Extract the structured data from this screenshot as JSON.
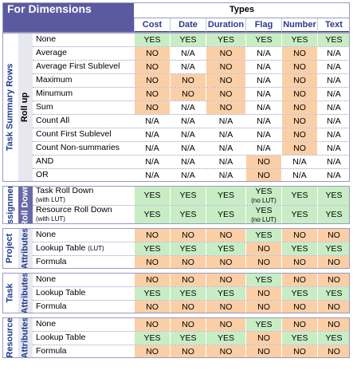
{
  "title": "For Dimensions",
  "types_header": "Types",
  "columns": [
    "Cost",
    "Date",
    "Duration",
    "Flag",
    "Number",
    "Text"
  ],
  "sections": [
    {
      "label": "Task Summary Rows",
      "sublabel": "Roll up",
      "sub_style": "rollup",
      "rows": [
        {
          "label": "None",
          "values": [
            "YES",
            "YES",
            "YES",
            "YES",
            "YES",
            "YES"
          ]
        },
        {
          "label": "Average",
          "values": [
            "NO",
            "N/A",
            "NO",
            "N/A",
            "NO",
            "N/A"
          ]
        },
        {
          "label": "Average First Sublevel",
          "values": [
            "NO",
            "N/A",
            "NO",
            "N/A",
            "NO",
            "N/A"
          ]
        },
        {
          "label": "Maximum",
          "values": [
            "NO",
            "NO",
            "NO",
            "N/A",
            "NO",
            "N/A"
          ]
        },
        {
          "label": "Minumum",
          "values": [
            "NO",
            "NO",
            "NO",
            "N/A",
            "NO",
            "N/A"
          ]
        },
        {
          "label": "Sum",
          "values": [
            "NO",
            "N/A",
            "NO",
            "N/A",
            "NO",
            "N/A"
          ]
        },
        {
          "label": "Count All",
          "values": [
            "N/A",
            "N/A",
            "N/A",
            "N/A",
            "NO",
            "N/A"
          ]
        },
        {
          "label": "Count First Sublevel",
          "values": [
            "N/A",
            "N/A",
            "N/A",
            "N/A",
            "NO",
            "N/A"
          ]
        },
        {
          "label": "Count Non-summaries",
          "values": [
            "N/A",
            "N/A",
            "N/A",
            "N/A",
            "NO",
            "N/A"
          ]
        },
        {
          "label": "AND",
          "values": [
            "N/A",
            "N/A",
            "N/A",
            "NO",
            "N/A",
            "N/A"
          ]
        },
        {
          "label": "OR",
          "values": [
            "N/A",
            "N/A",
            "N/A",
            "NO",
            "N/A",
            "N/A"
          ]
        }
      ]
    },
    {
      "label": "Assignment",
      "sublabel": "Roll Down",
      "sub_style": "rolldown",
      "rows": [
        {
          "label": "Task Roll Down",
          "note": "(with LUT)",
          "values": [
            "YES",
            "YES",
            "YES",
            "YES",
            "YES",
            "YES"
          ],
          "flag_note": "(no LUT)"
        },
        {
          "label": "Resource Roll Down",
          "note": "(with LUT)",
          "values": [
            "YES",
            "YES",
            "YES",
            "YES",
            "YES",
            "YES"
          ],
          "flag_note": "(no LUT)"
        }
      ]
    },
    {
      "label": "Project",
      "sublabel": "Attributes",
      "sub_style": "attr",
      "rows": [
        {
          "label": "None",
          "values": [
            "NO",
            "NO",
            "NO",
            "YES",
            "NO",
            "NO"
          ]
        },
        {
          "label": "Lookup Table",
          "inline_note": "(LUT)",
          "values": [
            "YES",
            "YES",
            "YES",
            "NO",
            "YES",
            "YES"
          ]
        },
        {
          "label": "Formula",
          "values": [
            "NO",
            "NO",
            "NO",
            "NO",
            "NO",
            "NO"
          ]
        }
      ]
    },
    {
      "label": "Task",
      "sublabel": "Attributes",
      "sub_style": "attr",
      "rows": [
        {
          "label": "None",
          "values": [
            "NO",
            "NO",
            "NO",
            "YES",
            "NO",
            "NO"
          ]
        },
        {
          "label": "Lookup Table",
          "values": [
            "YES",
            "YES",
            "YES",
            "NO",
            "YES",
            "YES"
          ]
        },
        {
          "label": "Formula",
          "values": [
            "NO",
            "NO",
            "NO",
            "NO",
            "NO",
            "NO"
          ]
        }
      ]
    },
    {
      "label": "Resource",
      "sublabel": "Attributes",
      "sub_style": "attr",
      "rows": [
        {
          "label": "None",
          "values": [
            "NO",
            "NO",
            "NO",
            "YES",
            "NO",
            "NO"
          ]
        },
        {
          "label": "Lookup Table",
          "values": [
            "YES",
            "YES",
            "YES",
            "NO",
            "YES",
            "YES"
          ]
        },
        {
          "label": "Formula",
          "values": [
            "NO",
            "NO",
            "NO",
            "NO",
            "NO",
            "NO"
          ]
        }
      ]
    }
  ]
}
